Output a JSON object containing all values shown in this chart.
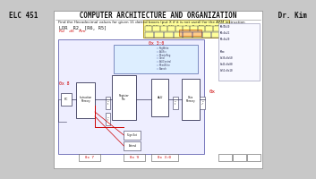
{
  "bg_color": "#c8c8c8",
  "page_bg": "#ffffff",
  "header_text": "ELC 451          COMPUTER ARCHITECTURE AND ORGANIZATION          Dr. Kim",
  "question_text": "Find the Hexadecimal values for given 11 dotted boxes (put X if it is not used) for the ARM instruction",
  "instruction": "LDR  R2, [R6, R5]",
  "subscripts": "Rd    d5    Rm",
  "annotation_red": "0x 3:0",
  "label_0x8": "0x 8",
  "label_0x7": "0x 7",
  "label_0x9": "0x 9",
  "label_0x30": "0x 3:0",
  "label_0x_right": "0x",
  "diagram_line_color": "#333355",
  "red_color": "#cc0000",
  "highlight_yellow": "#ffff99",
  "highlight_orange": "#ffcc88",
  "title_fontsize": 5.5,
  "body_fontsize": 4.0,
  "ctrl_signals": [
    "RegWrite",
    "ALUSrc",
    "MemtoReg",
    "Cond",
    "ALUControl",
    "MemWrite",
    "Branch"
  ],
  "notes": [
    "R0=0x10",
    "R6=0x21",
    "R5=0x20",
    "",
    "Mem:",
    "0x35=0x50",
    "0x41=0x00",
    "0x51=0x10"
  ],
  "bit_labels": [
    "31:28",
    "27:26",
    "25",
    "24:23",
    "22",
    "21",
    "20",
    "19:16",
    "15:12",
    "11:8",
    "7:0"
  ]
}
